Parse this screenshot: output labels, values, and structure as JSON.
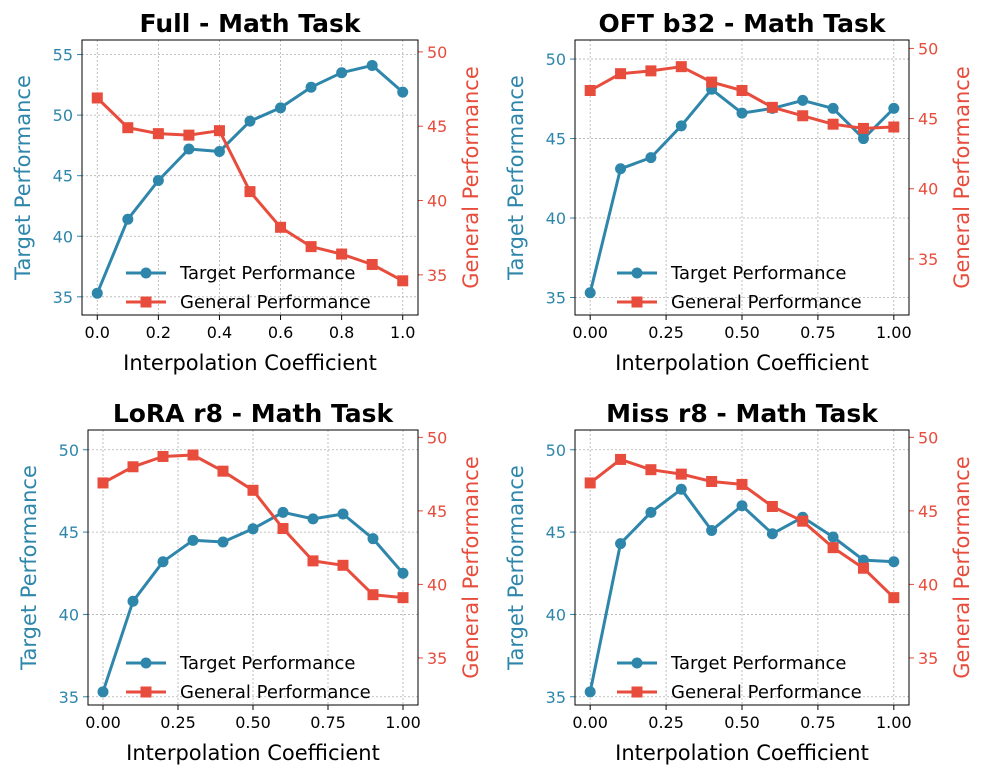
{
  "colors": {
    "target": "#2e86ab",
    "general": "#e74c3c"
  },
  "chart_data": [
    {
      "type": "line",
      "title": "Full - Math Task",
      "xlabel": "Interpolation Coefficient",
      "ylabel_left": "Target Performance",
      "ylabel_right": "General Performance",
      "x": [
        0.0,
        0.1,
        0.2,
        0.3,
        0.4,
        0.5,
        0.6,
        0.7,
        0.8,
        0.9,
        1.0
      ],
      "xticks": [
        0.0,
        0.2,
        0.4,
        0.6,
        0.8,
        1.0
      ],
      "xtick_labels": [
        "0.0",
        "0.2",
        "0.4",
        "0.6",
        "0.8",
        "1.0"
      ],
      "xlim": [
        -0.05,
        1.05
      ],
      "ylim_left": [
        33.5,
        56.2
      ],
      "yticks_left": [
        35,
        40,
        45,
        50,
        55
      ],
      "ylim_right": [
        32.3,
        50.8
      ],
      "yticks_right": [
        35,
        40,
        45,
        50
      ],
      "grid": true,
      "legend_position": "lower-right",
      "series": [
        {
          "name": "Target Performance",
          "axis": "left",
          "marker": "circle",
          "values": [
            35.3,
            41.4,
            44.6,
            47.2,
            47.0,
            49.5,
            50.6,
            52.3,
            53.5,
            54.1,
            51.9
          ]
        },
        {
          "name": "General Performance",
          "axis": "right",
          "marker": "square",
          "values": [
            46.9,
            44.9,
            44.5,
            44.4,
            44.7,
            40.6,
            38.2,
            36.9,
            36.4,
            35.7,
            34.6
          ]
        }
      ]
    },
    {
      "type": "line",
      "title": "OFT b32 - Math Task",
      "xlabel": "Interpolation Coefficient",
      "ylabel_left": "Target Performance",
      "ylabel_right": "General Performance",
      "x": [
        0.0,
        0.1,
        0.2,
        0.3,
        0.4,
        0.5,
        0.6,
        0.7,
        0.8,
        0.9,
        1.0
      ],
      "xticks": [
        0.0,
        0.25,
        0.5,
        0.75,
        1.0
      ],
      "xtick_labels": [
        "0.00",
        "0.25",
        "0.50",
        "0.75",
        "1.00"
      ],
      "xlim": [
        -0.05,
        1.05
      ],
      "ylim_left": [
        33.9,
        51.2
      ],
      "yticks_left": [
        35,
        40,
        45,
        50
      ],
      "ylim_right": [
        31.0,
        50.6
      ],
      "yticks_right": [
        35,
        40,
        45,
        50
      ],
      "grid": true,
      "legend_position": "lower-right",
      "series": [
        {
          "name": "Target Performance",
          "axis": "left",
          "marker": "circle",
          "values": [
            35.3,
            43.1,
            43.8,
            45.8,
            48.1,
            46.6,
            46.9,
            47.4,
            46.9,
            45.0,
            46.9
          ]
        },
        {
          "name": "General Performance",
          "axis": "right",
          "marker": "square",
          "values": [
            47.0,
            48.2,
            48.4,
            48.7,
            47.6,
            47.0,
            45.8,
            45.2,
            44.6,
            44.3,
            44.4
          ]
        }
      ]
    },
    {
      "type": "line",
      "title": "LoRA r8 - Math Task",
      "xlabel": "Interpolation Coefficient",
      "ylabel_left": "Target Performance",
      "ylabel_right": "General Performance",
      "x": [
        0.0,
        0.1,
        0.2,
        0.3,
        0.4,
        0.5,
        0.6,
        0.7,
        0.8,
        0.9,
        1.0
      ],
      "xticks": [
        0.0,
        0.25,
        0.5,
        0.75,
        1.0
      ],
      "xtick_labels": [
        "0.00",
        "0.25",
        "0.50",
        "0.75",
        "1.00"
      ],
      "xlim": [
        -0.05,
        1.05
      ],
      "ylim_left": [
        34.5,
        51.2
      ],
      "yticks_left": [
        35,
        40,
        45,
        50
      ],
      "ylim_right": [
        31.8,
        50.5
      ],
      "yticks_right": [
        35,
        40,
        45,
        50
      ],
      "grid": true,
      "legend_position": "lower-right",
      "series": [
        {
          "name": "Target Performance",
          "axis": "left",
          "marker": "circle",
          "values": [
            35.3,
            40.8,
            43.2,
            44.5,
            44.4,
            45.2,
            46.2,
            45.8,
            46.1,
            44.6,
            42.5
          ]
        },
        {
          "name": "General Performance",
          "axis": "right",
          "marker": "square",
          "values": [
            46.9,
            48.0,
            48.7,
            48.8,
            47.7,
            46.4,
            43.8,
            41.6,
            41.3,
            39.3,
            39.1
          ]
        }
      ]
    },
    {
      "type": "line",
      "title": "Miss r8 - Math Task",
      "xlabel": "Interpolation Coefficient",
      "ylabel_left": "Target Performance",
      "ylabel_right": "General Performance",
      "x": [
        0.0,
        0.1,
        0.2,
        0.3,
        0.4,
        0.5,
        0.6,
        0.7,
        0.8,
        0.9,
        1.0
      ],
      "xticks": [
        0.0,
        0.25,
        0.5,
        0.75,
        1.0
      ],
      "xtick_labels": [
        "0.00",
        "0.25",
        "0.50",
        "0.75",
        "1.00"
      ],
      "xlim": [
        -0.05,
        1.05
      ],
      "ylim_left": [
        34.5,
        51.2
      ],
      "yticks_left": [
        35,
        40,
        45,
        50
      ],
      "ylim_right": [
        31.8,
        50.5
      ],
      "yticks_right": [
        35,
        40,
        45,
        50
      ],
      "grid": true,
      "legend_position": "lower-right",
      "series": [
        {
          "name": "Target Performance",
          "axis": "left",
          "marker": "circle",
          "values": [
            35.3,
            44.3,
            46.2,
            47.6,
            45.1,
            46.6,
            44.9,
            45.9,
            44.7,
            43.3,
            43.2
          ]
        },
        {
          "name": "General Performance",
          "axis": "right",
          "marker": "square",
          "values": [
            46.9,
            48.5,
            47.8,
            47.5,
            47.0,
            46.8,
            45.3,
            44.3,
            42.5,
            41.1,
            39.1
          ]
        }
      ]
    }
  ]
}
